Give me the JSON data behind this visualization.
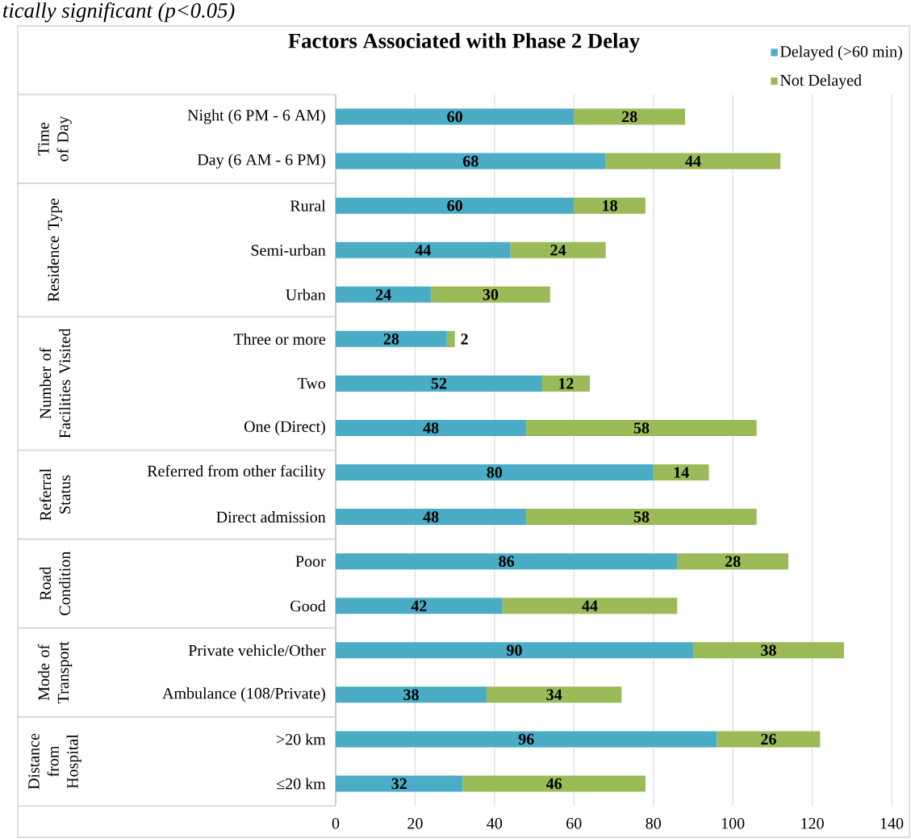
{
  "chart_data": {
    "type": "bar",
    "orientation": "horizontal",
    "stacked": true,
    "title": "Factors Associated with Phase 2 Delay",
    "annotations": [
      "*tically significant (p<0.05)*",
      "Time of Day",
      "Residence Type",
      "Number of Facilities Visited",
      "Referral Status",
      "Road Condition",
      "Mode of Transport",
      "Distance from Hospital"
    ],
    "categories": [
      "Night (6 PM - 6 AM)",
      "Day (6 AM - 6 PM)",
      "Rural",
      "Semi-urban",
      "Urban",
      "Three or more",
      "Two",
      "One (Direct)",
      "Referred from other facility",
      "Direct admission",
      "Poor",
      "Good",
      "Private vehicle/Other",
      "Ambulance (108/Private)",
      ">20 km",
      "≤20 km"
    ],
    "series": [
      {
        "name": "Delayed (>60 min)",
        "color": "#4bacc6",
        "values": [
          60,
          68,
          60,
          44,
          24,
          28,
          52,
          48,
          80,
          48,
          86,
          42,
          90,
          38,
          96,
          32
        ]
      },
      {
        "name": "Not Delayed",
        "color": "#9bbb59",
        "values": [
          28,
          44,
          18,
          24,
          30,
          2,
          12,
          58,
          14,
          58,
          28,
          44,
          38,
          34,
          26,
          46
        ]
      }
    ],
    "xlim": [
      0,
      140
    ],
    "xticks": [
      0,
      20,
      40,
      60,
      80,
      100,
      120,
      140
    ],
    "grid": "x",
    "legend": "top right",
    "data_labels": true
  }
}
